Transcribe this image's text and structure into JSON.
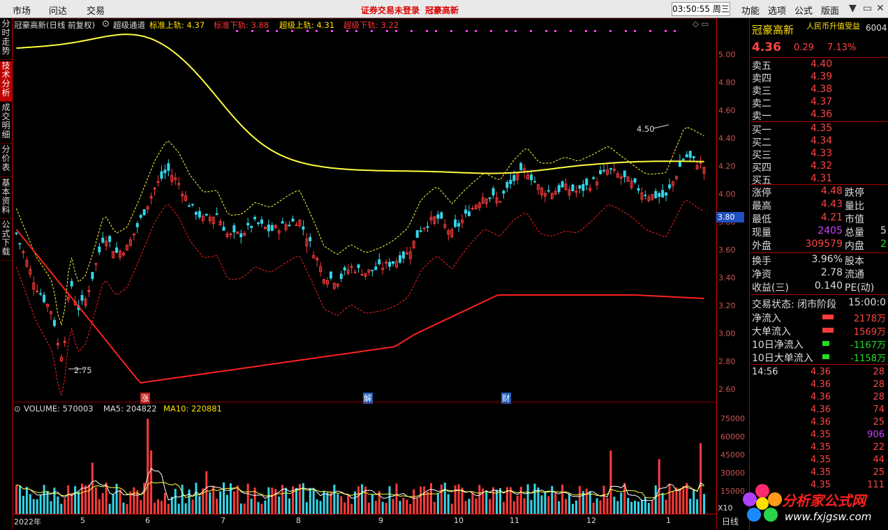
{
  "menu": {
    "left": [
      "市场",
      "问达",
      "交易"
    ],
    "warning": "证券交易未登录",
    "stock_title": "冠豪高新",
    "clock": "03:50:55 周三",
    "right": [
      "功能",
      "选项",
      "公式",
      "版面"
    ]
  },
  "left_tabs": [
    "分时走势",
    "技术分析",
    "成交明细",
    "分价表",
    "基本资料",
    "公式下载"
  ],
  "chart_header": {
    "name": "冠豪高新(日线 前复权)",
    "indicator": "超级通道",
    "std_upper_label": "标准上轨: 4.37",
    "std_lower_label": "标准下轨: 3.88",
    "super_upper_label": "超级上轨: 4.31",
    "super_lower_label": "超级下轨: 3.22"
  },
  "price_axis": [
    "5.00",
    "4.80",
    "4.60",
    "4.40",
    "4.20",
    "4.00",
    "3.80",
    "3.60",
    "3.40",
    "3.20",
    "3.00",
    "2.80",
    "2.60"
  ],
  "current_price_tag": "3.80",
  "annotations": {
    "high": "4.50",
    "low": "2.75",
    "event1": "涨",
    "event2": "解",
    "event3": "财"
  },
  "volume_header": {
    "vol": "VOLUME: 570003",
    "ma5": "MA5: 204822",
    "ma10": "MA10: 220881"
  },
  "volume_axis": [
    "75000",
    "60000",
    "45000",
    "30000",
    "15000"
  ],
  "volume_unit": "X10",
  "x_axis": [
    "2022年",
    "5",
    "6",
    "7",
    "8",
    "9",
    "10",
    "11",
    "12",
    "1"
  ],
  "period_label": "日线",
  "quote": {
    "name": "冠豪高新",
    "tag": "人民币升值受益",
    "code": "6004",
    "price": "4.36",
    "change": "0.29",
    "pct": "7.13%",
    "asks": [
      {
        "label": "卖五",
        "price": "4.40"
      },
      {
        "label": "卖四",
        "price": "4.39"
      },
      {
        "label": "卖三",
        "price": "4.38"
      },
      {
        "label": "卖二",
        "price": "4.37"
      },
      {
        "label": "卖一",
        "price": "4.36"
      }
    ],
    "bids": [
      {
        "label": "买一",
        "price": "4.35"
      },
      {
        "label": "买二",
        "price": "4.34"
      },
      {
        "label": "买三",
        "price": "4.33"
      },
      {
        "label": "买四",
        "price": "4.32"
      },
      {
        "label": "买五",
        "price": "4.31"
      }
    ],
    "stats": [
      {
        "l1": "涨停",
        "v1": "4.48",
        "l2": "跌停"
      },
      {
        "l1": "最高",
        "v1": "4.43",
        "l2": "量比"
      },
      {
        "l1": "最低",
        "v1": "4.21",
        "l2": "市值"
      },
      {
        "l1": "现量",
        "v1": "2405",
        "l2": "总量",
        "v2": "5"
      },
      {
        "l1": "外盘",
        "v1": "309579",
        "l2": "内盘",
        "v2": "2"
      }
    ],
    "stats2": [
      {
        "l1": "换手",
        "v1": "3.96%",
        "l2": "股本"
      },
      {
        "l1": "净资",
        "v1": "2.78",
        "l2": "流通"
      },
      {
        "l1": "收益(三)",
        "v1": "0.140",
        "l2": "PE(动)"
      }
    ],
    "trade_status": "交易状态: 闭市阶段",
    "trade_time": "15:00:0",
    "flows": [
      {
        "label": "净流入",
        "value": "2178万"
      },
      {
        "label": "大单流入",
        "value": "1569万"
      },
      {
        "label": "10日净流入",
        "value": "-1167万"
      },
      {
        "label": "10日大单流入",
        "value": "-1158万"
      }
    ],
    "ticks": [
      {
        "time": "14:56",
        "price": "4.36",
        "vol": "28"
      },
      {
        "time": "",
        "price": "4.36",
        "vol": "28"
      },
      {
        "time": "",
        "price": "4.36",
        "vol": "28"
      },
      {
        "time": "",
        "price": "4.36",
        "vol": "74"
      },
      {
        "time": "",
        "price": "4.36",
        "vol": "25"
      },
      {
        "time": "",
        "price": "4.35",
        "vol": "906"
      },
      {
        "time": "",
        "price": "4.35",
        "vol": "22"
      },
      {
        "time": "",
        "price": "4.35",
        "vol": "44"
      },
      {
        "time": "",
        "price": "4.35",
        "vol": "25"
      },
      {
        "time": "",
        "price": "4.35",
        "vol": "111"
      }
    ]
  },
  "logo": {
    "text": "分析家公式网",
    "url": "www.fxjgsw.com"
  },
  "colors": {
    "up": "#ff3b3b",
    "down": "#33d6e8",
    "upper_band": "#ffff40",
    "lower_band": "#ff2020",
    "bg": "#000000",
    "grid": "#aa0000"
  }
}
